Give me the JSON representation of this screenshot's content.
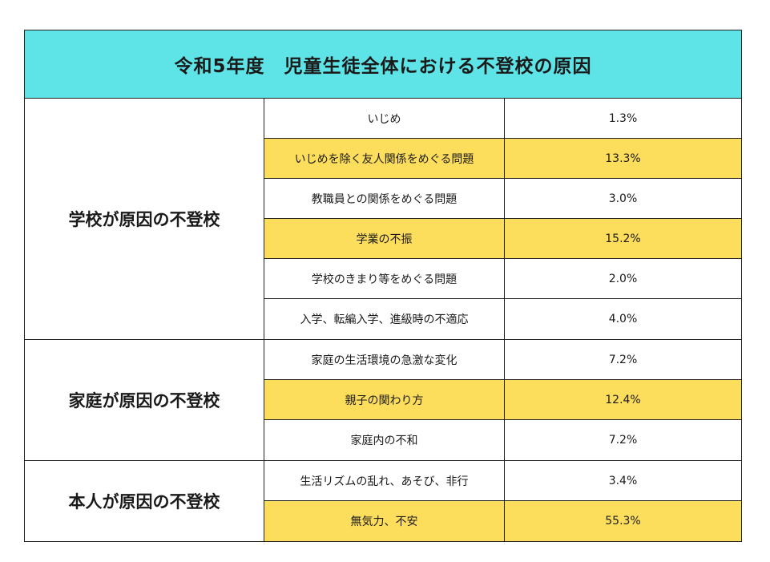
{
  "title": "令和5年度　児童生徒全体における不登校の原因",
  "groups": [
    {
      "label": "学校が原因の不登校",
      "rows": [
        {
          "reason": "いじめ",
          "pct": "1.3%",
          "highlight": false
        },
        {
          "reason": "いじめを除く友人関係をめぐる問題",
          "pct": "13.3%",
          "highlight": true
        },
        {
          "reason": "教職員との関係をめぐる問題",
          "pct": "3.0%",
          "highlight": false
        },
        {
          "reason": "学業の不振",
          "pct": "15.2%",
          "highlight": true
        },
        {
          "reason": "学校のきまり等をめぐる問題",
          "pct": "2.0%",
          "highlight": false
        },
        {
          "reason": "入学、転編入学、進級時の不適応",
          "pct": "4.0%",
          "highlight": false
        }
      ]
    },
    {
      "label": "家庭が原因の不登校",
      "rows": [
        {
          "reason": "家庭の生活環境の急激な変化",
          "pct": "7.2%",
          "highlight": false
        },
        {
          "reason": "親子の関わり方",
          "pct": "12.4%",
          "highlight": true
        },
        {
          "reason": "家庭内の不和",
          "pct": "7.2%",
          "highlight": false
        }
      ]
    },
    {
      "label": "本人が原因の不登校",
      "rows": [
        {
          "reason": "生活リズムの乱れ、あそび、非行",
          "pct": "3.4%",
          "highlight": false
        },
        {
          "reason": "無気力、不安",
          "pct": "55.3%",
          "highlight": true
        }
      ]
    }
  ],
  "colors": {
    "title_bg": "#5ee3e6",
    "highlight_bg": "#fddd5c"
  }
}
